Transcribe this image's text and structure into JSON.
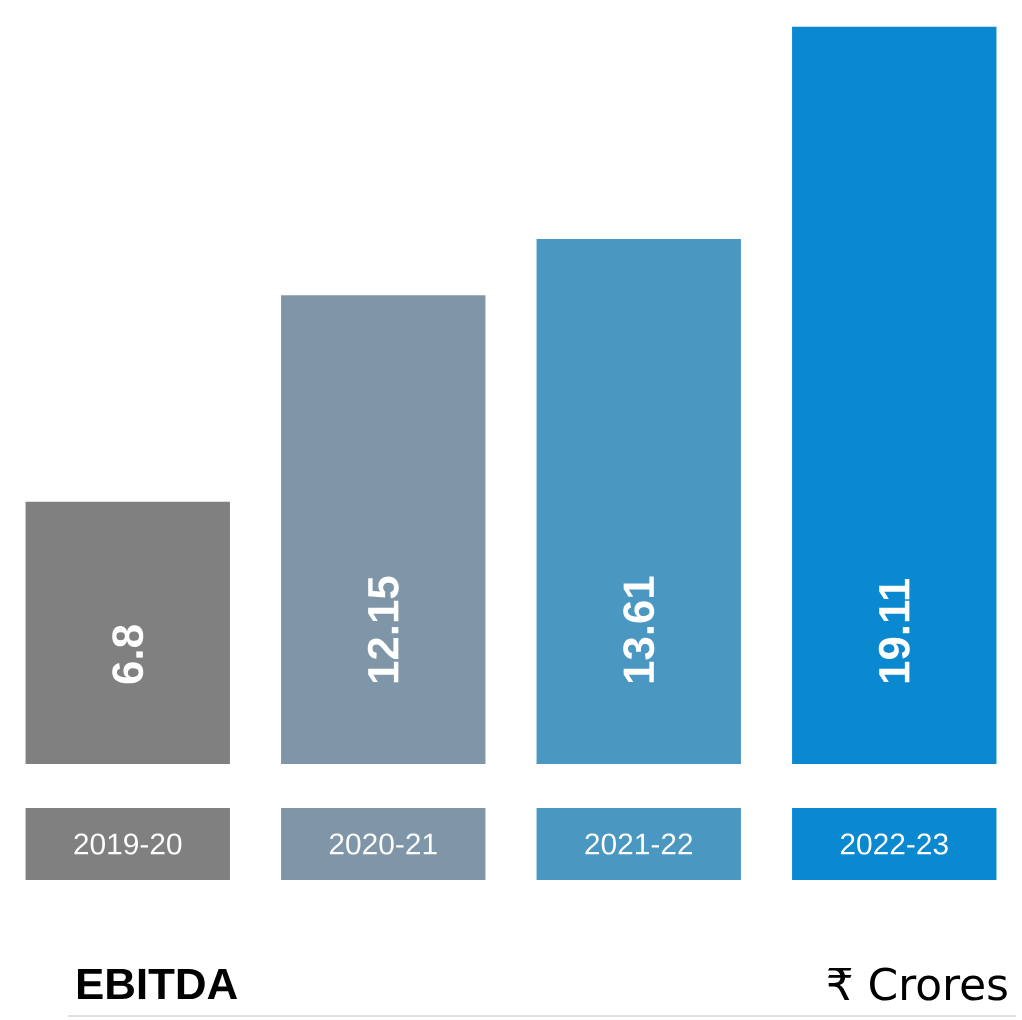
{
  "chart_data": {
    "type": "bar",
    "title": "EBITDA",
    "annotations": [
      "₹ Crores"
    ],
    "categories": [
      "2019-20",
      "2020-21",
      "2021-22",
      "2022-23"
    ],
    "values": [
      6.8,
      12.15,
      13.61,
      19.11
    ],
    "colors": [
      "#808080",
      "#7f96a8",
      "#4a97c2",
      "#0a88d0"
    ],
    "data_labels": true
  }
}
